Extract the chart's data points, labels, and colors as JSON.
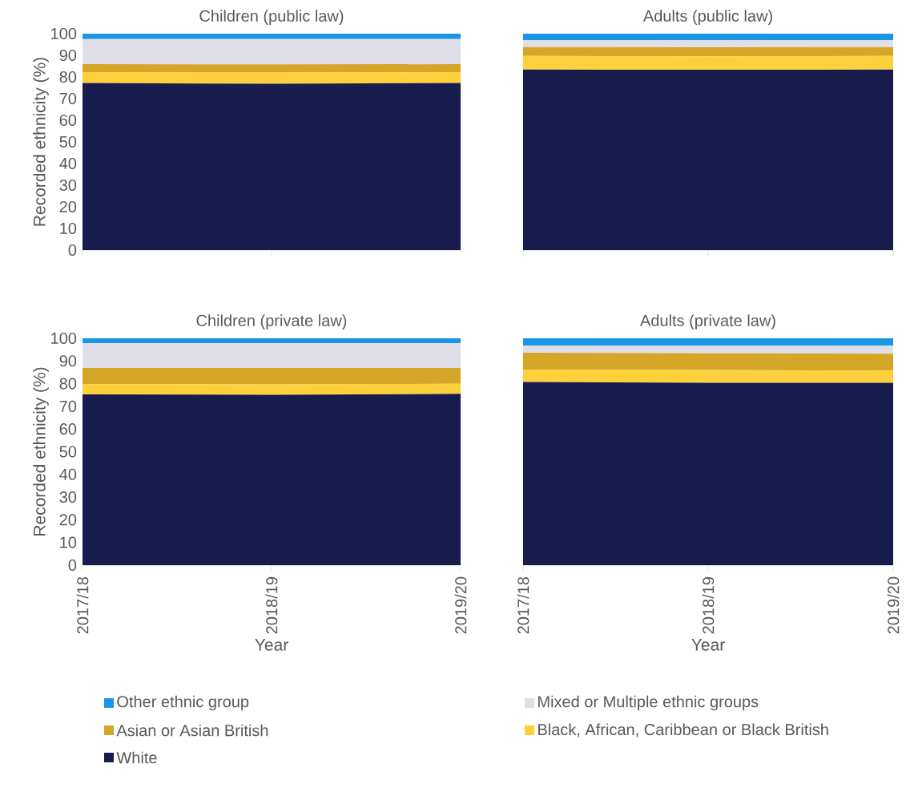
{
  "chart_data": [
    {
      "type": "area",
      "title": "Children (public law)",
      "ylabel": "Recorded ethnicity (%)",
      "stacked": true,
      "legend": "bottom",
      "tick_labels": "y",
      "categories": [
        "2017/18",
        "2018/19",
        "2019/20"
      ],
      "ylim": [
        0,
        100
      ],
      "yticks": [
        0,
        10,
        20,
        30,
        40,
        50,
        60,
        70,
        80,
        90,
        100
      ],
      "series": [
        {
          "name": "White",
          "color": "#171c4d",
          "values": [
            77.2,
            76.8,
            77.2
          ]
        },
        {
          "name": "Black, African, Caribbean or Black British",
          "color": "#fed03b",
          "values": [
            5.0,
            5.2,
            5.0
          ]
        },
        {
          "name": "Asian or Asian British",
          "color": "#d4a526",
          "values": [
            3.7,
            3.8,
            3.7
          ]
        },
        {
          "name": "Mixed or Multiple ethnic groups",
          "color": "#e0dfe8",
          "values": [
            11.6,
            11.7,
            11.6
          ]
        },
        {
          "name": "Other ethnic group",
          "color": "#1a96e6",
          "values": [
            2.5,
            2.5,
            2.5
          ]
        }
      ]
    },
    {
      "type": "area",
      "title": "Adults (public law)",
      "stacked": true,
      "tick_labels": false,
      "categories": [
        "2017/18",
        "2018/19",
        "2019/20"
      ],
      "ylim": [
        0,
        100
      ],
      "yticks": [
        0,
        10,
        20,
        30,
        40,
        50,
        60,
        70,
        80,
        90,
        100
      ],
      "series": [
        {
          "color": "#171c4d",
          "values": [
            83.4,
            83.3,
            83.4
          ]
        },
        {
          "color": "#fed03b",
          "values": [
            6.3,
            6.2,
            6.3
          ]
        },
        {
          "color": "#d4a526",
          "values": [
            4.1,
            4.2,
            4.1
          ]
        },
        {
          "color": "#e0dfe8",
          "values": [
            3.1,
            3.2,
            3.1
          ]
        },
        {
          "color": "#1a96e6",
          "values": [
            3.1,
            3.1,
            3.1
          ]
        }
      ]
    },
    {
      "type": "area",
      "title": "Children (private law)",
      "ylabel": "Recorded ethnicity (%)",
      "xlabel": "Year",
      "stacked": true,
      "categories": [
        "2017/18",
        "2018/19",
        "2019/20"
      ],
      "ylim": [
        0,
        100
      ],
      "yticks": [
        0,
        10,
        20,
        30,
        40,
        50,
        60,
        70,
        80,
        90,
        100
      ],
      "series": [
        {
          "color": "#171c4d",
          "values": [
            75.3,
            75.1,
            75.5
          ]
        },
        {
          "color": "#fed03b",
          "values": [
            4.5,
            4.6,
            4.4
          ]
        },
        {
          "color": "#d4a526",
          "values": [
            7.1,
            7.2,
            7.0
          ]
        },
        {
          "color": "#e0dfe8",
          "values": [
            10.9,
            10.9,
            10.9
          ]
        },
        {
          "color": "#1a96e6",
          "values": [
            2.2,
            2.2,
            2.2
          ]
        }
      ]
    },
    {
      "type": "area",
      "title": "Adults (private law)",
      "xlabel": "Year",
      "stacked": true,
      "tick_labels": "x",
      "categories": [
        "2017/18",
        "2018/19",
        "2019/20"
      ],
      "ylim": [
        0,
        100
      ],
      "yticks": [
        0,
        10,
        20,
        30,
        40,
        50,
        60,
        70,
        80,
        90,
        100
      ],
      "series": [
        {
          "color": "#171c4d",
          "values": [
            80.7,
            80.4,
            80.4
          ]
        },
        {
          "color": "#fed03b",
          "values": [
            5.5,
            5.6,
            5.4
          ]
        },
        {
          "color": "#d4a526",
          "values": [
            7.4,
            7.4,
            7.4
          ]
        },
        {
          "color": "#e0dfe8",
          "values": [
            3.2,
            3.3,
            3.6
          ]
        },
        {
          "color": "#1a96e6",
          "values": [
            3.2,
            3.3,
            3.2
          ]
        }
      ]
    }
  ]
}
